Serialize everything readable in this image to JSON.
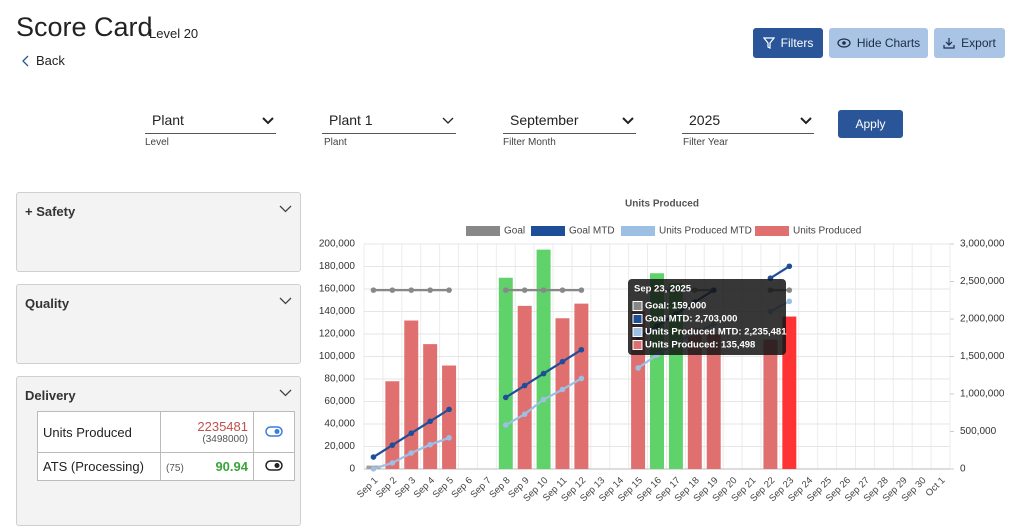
{
  "header": {
    "title": "Score Card",
    "subtitle": "Level 20",
    "back": "Back",
    "buttons": [
      "Filters",
      "Hide Charts",
      "Export"
    ]
  },
  "filters": [
    {
      "value": "Plant",
      "label": "Level"
    },
    {
      "value": "Plant 1",
      "label": "Plant"
    },
    {
      "value": "September",
      "label": "Filter Month"
    },
    {
      "value": "2025",
      "label": "Filter Year"
    }
  ],
  "apply": "Apply",
  "panels": [
    "+ Safety",
    "Quality",
    "Delivery"
  ],
  "delivery": {
    "rows": [
      {
        "name": "Units Produced",
        "value": "2235481",
        "target": "(3498000)"
      },
      {
        "name": "ATS (Processing)",
        "target": "(75)",
        "value": "90.94"
      }
    ]
  },
  "chart_data": {
    "type": "bar",
    "title": "Units Produced",
    "categories": [
      "Sep 1",
      "Sep 2",
      "Sep 3",
      "Sep 4",
      "Sep 5",
      "Sep 6",
      "Sep 7",
      "Sep 8",
      "Sep 9",
      "Sep 10",
      "Sep 11",
      "Sep 12",
      "Sep 13",
      "Sep 14",
      "Sep 15",
      "Sep 16",
      "Sep 17",
      "Sep 18",
      "Sep 19",
      "Sep 20",
      "Sep 21",
      "Sep 22",
      "Sep 23",
      "Sep 24",
      "Sep 25",
      "Sep 26",
      "Sep 27",
      "Sep 28",
      "Sep 29",
      "Sep 30",
      "Oct 1"
    ],
    "series": [
      {
        "name": "Goal",
        "type": "line",
        "axis": "y",
        "color": "#888888",
        "values": [
          159000,
          159000,
          159000,
          159000,
          159000,
          null,
          null,
          159000,
          159000,
          159000,
          159000,
          159000,
          null,
          null,
          159000,
          159000,
          159000,
          159000,
          159000,
          null,
          null,
          159000,
          159000,
          null,
          null,
          null,
          null,
          null,
          null,
          null,
          null
        ]
      },
      {
        "name": "Goal MTD",
        "type": "line",
        "axis": "y2",
        "color": "#1f4e99",
        "values": [
          159000,
          318000,
          477000,
          636000,
          795000,
          null,
          null,
          954000,
          1113000,
          1272000,
          1431000,
          1590000,
          null,
          null,
          1749000,
          1908000,
          2067000,
          2226000,
          2385000,
          null,
          null,
          2544000,
          2703000,
          null,
          null,
          null,
          null,
          null,
          null,
          null,
          null
        ]
      },
      {
        "name": "Units Produced MTD",
        "type": "line",
        "axis": "y2",
        "color": "#9dbfe4",
        "values": [
          3000,
          81000,
          213000,
          324000,
          416000,
          null,
          null,
          586000,
          731000,
          926000,
          1060000,
          1207000,
          null,
          null,
          1347000,
          1521000,
          1686000,
          1811000,
          1931000,
          null,
          null,
          2100000,
          2235481,
          null,
          null,
          null,
          null,
          null,
          null,
          null,
          null
        ]
      },
      {
        "name": "Units Produced",
        "type": "bar",
        "axis": "y",
        "color": "#e07070",
        "values": [
          3000,
          78000,
          132000,
          111000,
          92000,
          null,
          null,
          170000,
          145000,
          195000,
          134000,
          147000,
          null,
          null,
          140000,
          174000,
          165000,
          125000,
          120000,
          null,
          null,
          115000,
          135498,
          null,
          null,
          null,
          null,
          null,
          null,
          null,
          null
        ],
        "colors": [
          "#9e9e9e",
          "#e07070",
          "#e07070",
          "#e07070",
          "#e07070",
          null,
          null,
          "#5fd36a",
          "#e07070",
          "#5fd36a",
          "#e07070",
          "#e07070",
          null,
          null,
          "#e07070",
          "#5fd36a",
          "#5fd36a",
          "#e07070",
          "#e07070",
          null,
          null,
          "#e07070",
          "#ff3333",
          null,
          null,
          null,
          null,
          null,
          null,
          null,
          null
        ]
      }
    ],
    "ylim": [
      0,
      200000
    ],
    "yticks": [
      0,
      {
        "value": 20000,
        "label": "20,000"
      },
      {
        "value": 40000,
        "label": "40,000"
      },
      {
        "value": 60000,
        "label": "60,000"
      },
      {
        "value": 80000,
        "label": "80,000"
      },
      {
        "value": 100000,
        "label": "100,000"
      },
      {
        "value": 120000,
        "label": "120,000"
      },
      {
        "value": 140000,
        "label": "140,000"
      },
      {
        "value": 160000,
        "label": "160,000"
      },
      {
        "value": 180000,
        "label": "180,000"
      },
      {
        "value": 200000,
        "label": "200,000"
      }
    ],
    "y2lim": [
      0,
      3000000
    ],
    "y2ticks": [
      0,
      {
        "value": 500000,
        "label": "500,000"
      },
      {
        "value": 1000000,
        "label": "1,000,000"
      },
      {
        "value": 1500000,
        "label": "1,500,000"
      },
      {
        "value": 2000000,
        "label": "2,000,000"
      },
      {
        "value": 2500000,
        "label": "2,500,000"
      },
      {
        "value": 3000000,
        "label": "3,000,000"
      }
    ],
    "grid": true,
    "legend": "top",
    "tooltip": {
      "title": "Sep 23, 2025",
      "items": [
        "Goal: 159,000",
        "Goal MTD: 2,703,000",
        "Units Produced MTD: 2,235,481",
        "Units Produced: 135,498"
      ]
    }
  }
}
